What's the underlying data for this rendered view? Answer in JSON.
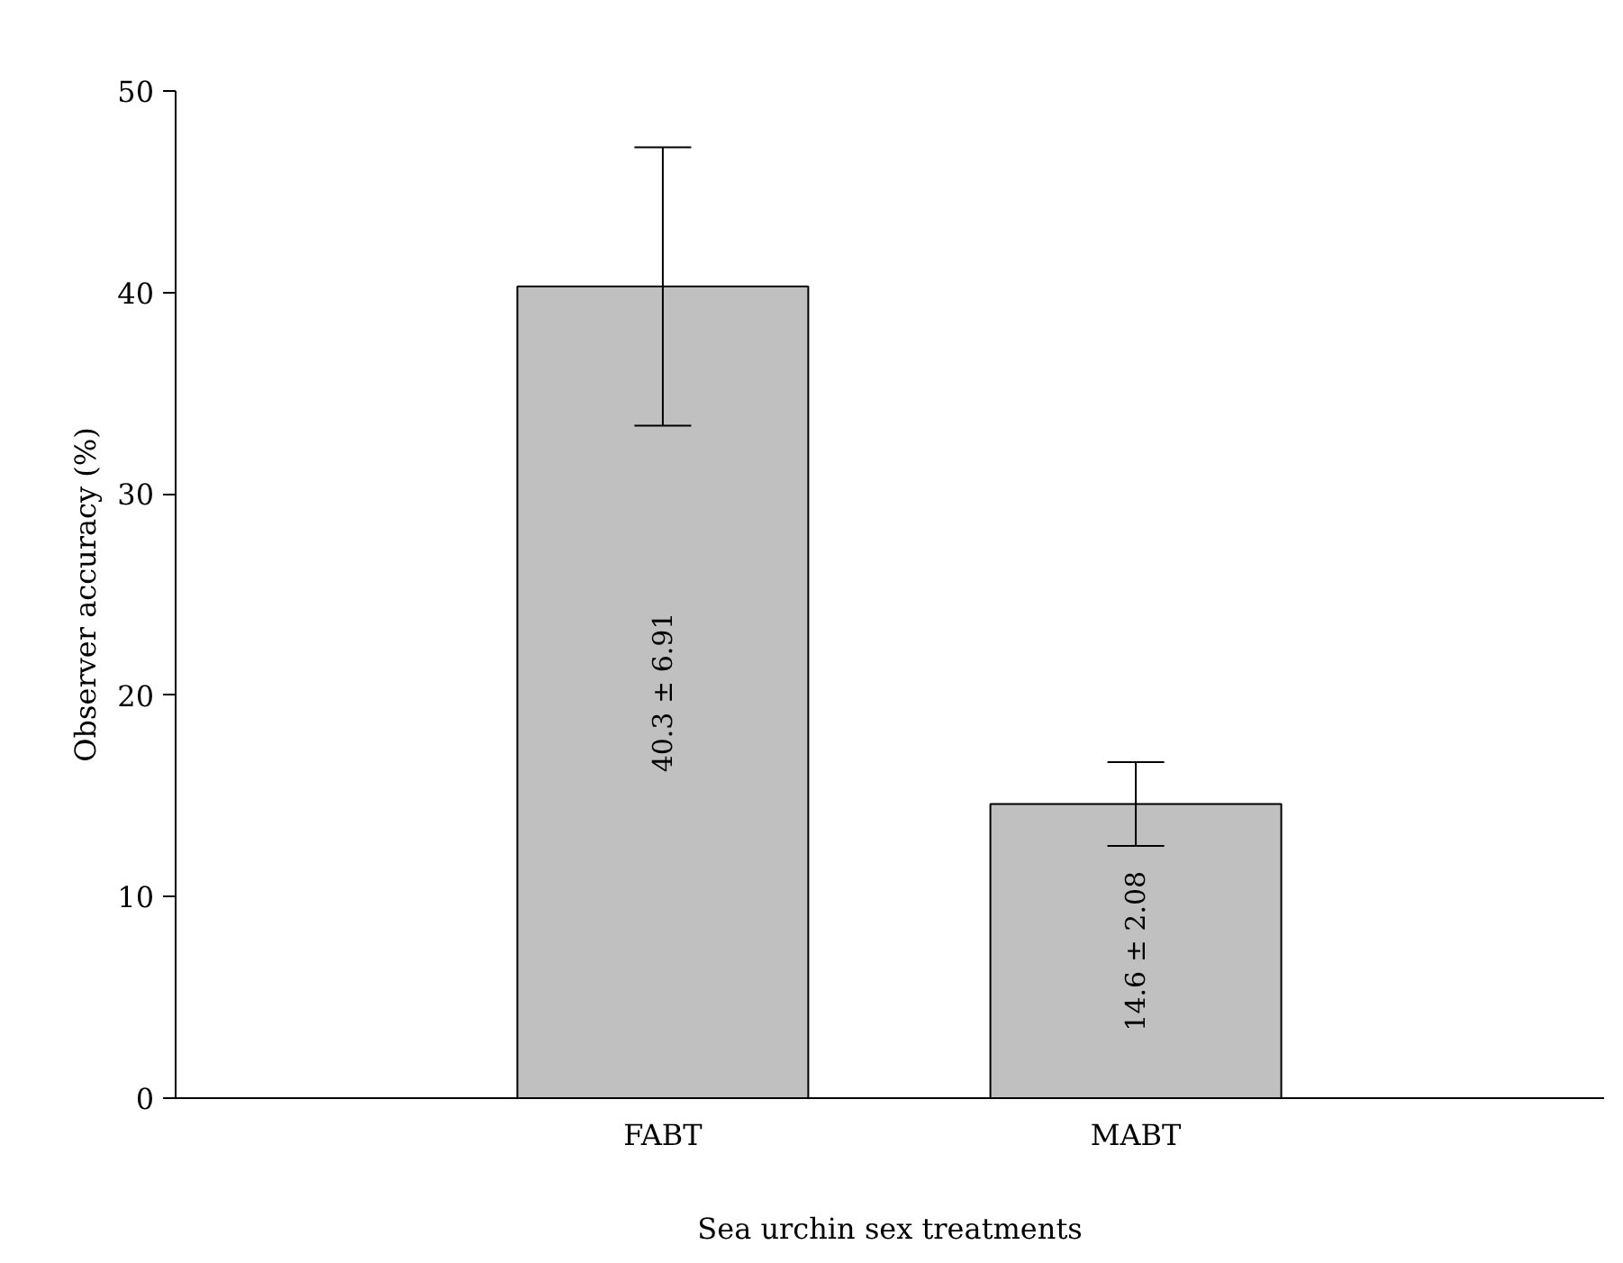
{
  "chart_data": {
    "type": "bar",
    "xlabel": "Sea urchin sex treatments",
    "ylabel": "Observer accuracy (%)",
    "categories": [
      "FABT",
      "MABT"
    ],
    "values": [
      40.3,
      14.6
    ],
    "errors": [
      6.91,
      2.08
    ],
    "value_labels": [
      "40.3 ± 6.91",
      "14.6 ± 2.08"
    ],
    "color": "#c0c0c0",
    "ylim": [
      0,
      50
    ],
    "yticks": [
      0,
      10,
      20,
      30,
      40,
      50
    ],
    "grid": false
  }
}
